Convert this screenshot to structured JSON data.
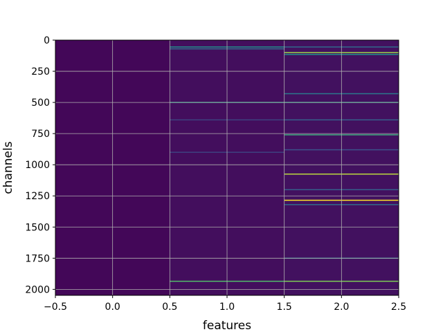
{
  "chart_data": {
    "type": "heatmap",
    "title": "",
    "xlabel": "features",
    "ylabel": "channels",
    "xlim": [
      -0.5,
      2.5
    ],
    "ylim": [
      2048,
      0
    ],
    "y_inverted": true,
    "grid": true,
    "colormap": "viridis",
    "x_ticks": [
      "−0.5",
      "0.0",
      "0.5",
      "1.0",
      "1.5",
      "2.0",
      "2.5"
    ],
    "x_tick_values": [
      -0.5,
      0.0,
      0.5,
      1.0,
      1.5,
      2.0,
      2.5
    ],
    "y_ticks": [
      "0",
      "250",
      "500",
      "750",
      "1000",
      "1250",
      "1500",
      "1750",
      "2000"
    ],
    "y_tick_values": [
      0,
      250,
      500,
      750,
      1000,
      1250,
      1500,
      1750,
      2000
    ],
    "columns": [
      {
        "feature": 0,
        "background": 0.02,
        "lines": []
      },
      {
        "feature": 1,
        "background": 0.04,
        "lines": [
          {
            "channel": 55,
            "value": 0.5
          },
          {
            "channel": 70,
            "value": 0.35
          },
          {
            "channel": 500,
            "value": 0.55
          },
          {
            "channel": 640,
            "value": 0.2
          },
          {
            "channel": 900,
            "value": 0.2
          },
          {
            "channel": 1935,
            "value": 0.7
          }
        ]
      },
      {
        "feature": 2,
        "background": 0.05,
        "lines": [
          {
            "channel": 55,
            "value": 0.35
          },
          {
            "channel": 100,
            "value": 0.85
          },
          {
            "channel": 115,
            "value": 0.5
          },
          {
            "channel": 430,
            "value": 0.4
          },
          {
            "channel": 500,
            "value": 0.55
          },
          {
            "channel": 640,
            "value": 0.3
          },
          {
            "channel": 760,
            "value": 0.6
          },
          {
            "channel": 880,
            "value": 0.25
          },
          {
            "channel": 1075,
            "value": 0.9
          },
          {
            "channel": 1200,
            "value": 0.3
          },
          {
            "channel": 1285,
            "value": 1.0
          },
          {
            "channel": 1320,
            "value": 0.35
          },
          {
            "channel": 1750,
            "value": 0.4
          },
          {
            "channel": 1935,
            "value": 0.8
          }
        ]
      }
    ]
  }
}
